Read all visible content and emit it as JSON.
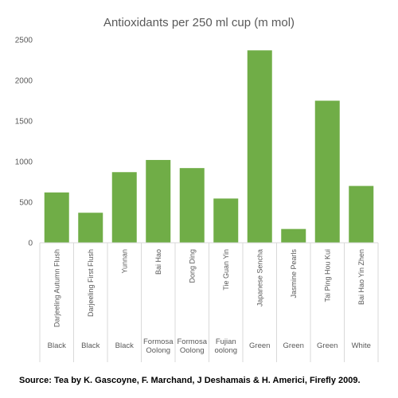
{
  "chart_data": {
    "type": "bar",
    "title": "Antioxidants per 250 ml cup (m mol)",
    "xlabel": "",
    "ylabel": "",
    "ylim": [
      0,
      2500
    ],
    "yticks": [
      "0",
      "500",
      "1000",
      "1500",
      "2000",
      "2500"
    ],
    "grid": false,
    "legend": "none",
    "bar_color": "#70ad47",
    "categories": [
      "Darjeeling Autumn Flush",
      "Darjeeling First Flush",
      "Yunnan",
      "Bai Hao",
      "Dong Ding",
      "Tie Guan Yin",
      "Japanese Sencha",
      "Jasmine Pearls",
      "Tai Ping Hou Kui",
      "Bai Hao Yin Zhen"
    ],
    "groups": [
      [
        "Black"
      ],
      [
        "Black"
      ],
      [
        "Black"
      ],
      [
        "Formosa",
        "Oolong"
      ],
      [
        "Formosa",
        "Oolong"
      ],
      [
        "Fujian",
        "oolong"
      ],
      [
        "Green"
      ],
      [
        "Green"
      ],
      [
        "Green"
      ],
      [
        "White"
      ]
    ],
    "values": [
      620,
      370,
      870,
      1020,
      920,
      545,
      2370,
      170,
      1750,
      700
    ]
  },
  "source": "Source: Tea by K. Gascoyne, F. Marchand, J Deshamais & H. Americi, Firefly 2009."
}
